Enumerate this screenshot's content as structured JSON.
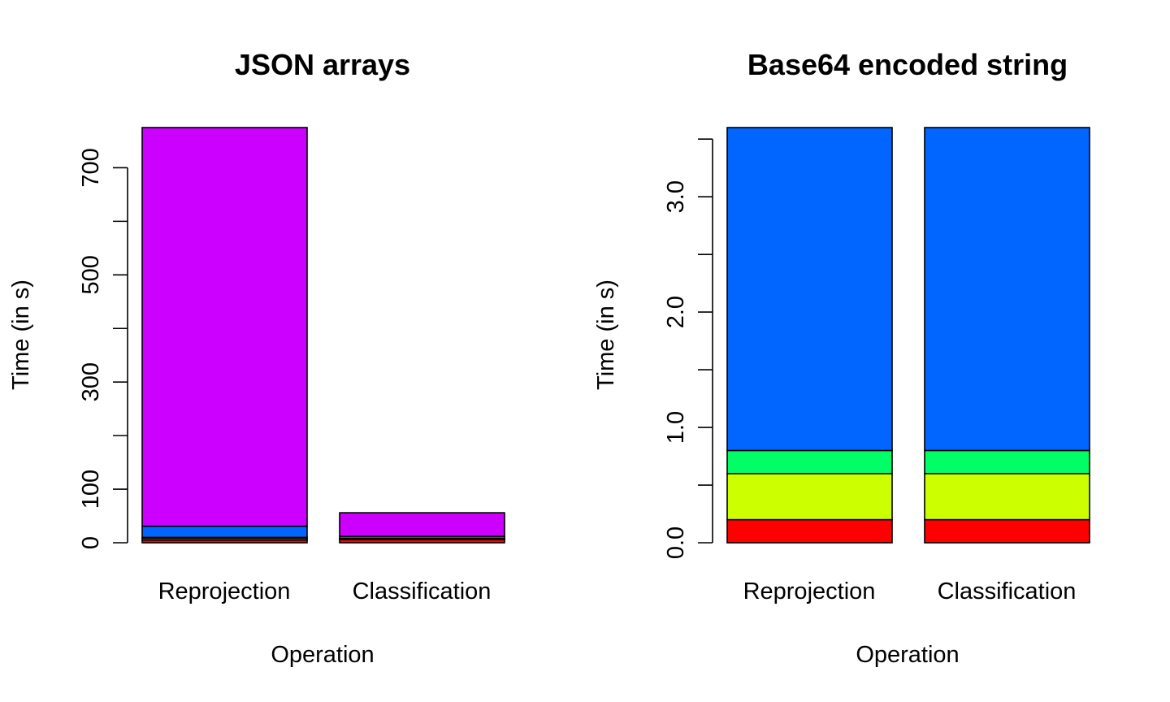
{
  "chart_data": [
    {
      "type": "bar",
      "stacked": true,
      "title": "JSON arrays",
      "xlabel": "Operation",
      "ylabel": "Time (in s)",
      "categories": [
        "Reprojection",
        "Classification"
      ],
      "ylim": [
        0,
        775
      ],
      "y_ticks": [
        0,
        100,
        200,
        300,
        400,
        500,
        600,
        700
      ],
      "y_tick_labels": [
        "0",
        "100",
        "",
        "300",
        "",
        "500",
        "",
        "700"
      ],
      "grid": false,
      "legend": "none",
      "series": [
        {
          "color": "#FF0000",
          "values": [
            5,
            6
          ]
        },
        {
          "color": "#CCFF00",
          "values": [
            3,
            1
          ]
        },
        {
          "color": "#00FF66",
          "values": [
            2,
            1
          ]
        },
        {
          "color": "#0066FF",
          "values": [
            21,
            4
          ]
        },
        {
          "color": "#CC00FF",
          "values": [
            744,
            44
          ]
        }
      ]
    },
    {
      "type": "bar",
      "stacked": true,
      "title": "Base64 encoded string",
      "xlabel": "Operation",
      "ylabel": "Time (in s)",
      "categories": [
        "Reprojection",
        "Classification"
      ],
      "ylim": [
        0,
        3.6
      ],
      "y_ticks": [
        0,
        0.5,
        1,
        1.5,
        2,
        2.5,
        3,
        3.5
      ],
      "y_tick_labels": [
        "0.0",
        "",
        "1.0",
        "",
        "2.0",
        "",
        "3.0",
        ""
      ],
      "grid": false,
      "legend": "none",
      "series": [
        {
          "color": "#FF0000",
          "values": [
            0.2,
            0.2
          ]
        },
        {
          "color": "#CCFF00",
          "values": [
            0.4,
            0.4
          ]
        },
        {
          "color": "#00FF66",
          "values": [
            0.2,
            0.2
          ]
        },
        {
          "color": "#0066FF",
          "values": [
            2.8,
            2.8
          ]
        }
      ]
    }
  ]
}
